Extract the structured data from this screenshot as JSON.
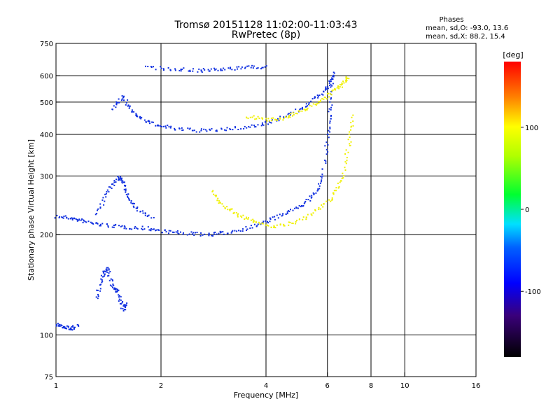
{
  "chart_data": {
    "type": "scatter",
    "title": "Tromsø 20151128 11:02:00-11:03:43",
    "subtitle": "RwPretec (8p)",
    "xlabel": "Frequency [MHz]",
    "ylabel": "Stationary phase Virtual Height [km]",
    "x_scale": "log",
    "y_scale": "log",
    "xlim": [
      1,
      16
    ],
    "ylim": [
      75,
      750
    ],
    "x_ticks": [
      1,
      2,
      4,
      6,
      8,
      10,
      16
    ],
    "y_ticks": [
      75,
      100,
      200,
      300,
      400,
      500,
      600,
      750
    ],
    "grid": true,
    "stats": {
      "header": "Phases",
      "line1": "mean, sd,O: -93.0, 13.6",
      "line2": "mean, sd,X:  88.2, 15.4"
    },
    "colorbar": {
      "label": "[deg]",
      "range": [
        -180,
        180
      ],
      "ticks": [
        100,
        0,
        -100
      ],
      "tick_labels": [
        "100",
        "0",
        "-100"
      ],
      "colormap": "rainbow"
    },
    "traces": [
      {
        "phase": -100,
        "points": [
          [
            1.0,
            228
          ],
          [
            1.1,
            225
          ],
          [
            1.2,
            220
          ],
          [
            1.35,
            215
          ],
          [
            1.55,
            212
          ],
          [
            1.8,
            210
          ],
          [
            2.0,
            206
          ],
          [
            2.3,
            203
          ],
          [
            2.7,
            201
          ],
          [
            3.0,
            203
          ],
          [
            3.5,
            210
          ],
          [
            4.0,
            220
          ],
          [
            4.5,
            232
          ],
          [
            5.0,
            245
          ],
          [
            5.5,
            265
          ],
          [
            5.8,
            300
          ],
          [
            6.0,
            400
          ],
          [
            6.1,
            480
          ],
          [
            6.15,
            600
          ]
        ]
      },
      {
        "phase": 100,
        "points": [
          [
            2.8,
            270
          ],
          [
            3.0,
            245
          ],
          [
            3.3,
            230
          ],
          [
            3.7,
            220
          ],
          [
            4.2,
            212
          ],
          [
            4.8,
            218
          ],
          [
            5.5,
            235
          ],
          [
            6.2,
            260
          ],
          [
            6.6,
            300
          ],
          [
            6.9,
            380
          ],
          [
            7.1,
            460
          ]
        ]
      },
      {
        "phase": -100,
        "points": [
          [
            1.45,
            480
          ],
          [
            1.55,
            520
          ],
          [
            1.65,
            470
          ],
          [
            1.8,
            440
          ],
          [
            2.0,
            425
          ],
          [
            2.3,
            415
          ],
          [
            2.7,
            412
          ],
          [
            3.2,
            418
          ],
          [
            3.8,
            428
          ],
          [
            4.3,
            445
          ],
          [
            5.0,
            480
          ],
          [
            5.6,
            520
          ],
          [
            6.0,
            560
          ],
          [
            6.3,
            620
          ]
        ]
      },
      {
        "phase": 100,
        "points": [
          [
            3.5,
            455
          ],
          [
            4.0,
            445
          ],
          [
            4.5,
            450
          ],
          [
            5.0,
            470
          ],
          [
            5.6,
            500
          ],
          [
            6.2,
            540
          ],
          [
            6.6,
            570
          ],
          [
            6.9,
            600
          ]
        ]
      },
      {
        "phase": -100,
        "points": [
          [
            1.8,
            640
          ],
          [
            2.2,
            630
          ],
          [
            2.6,
            625
          ],
          [
            3.0,
            628
          ],
          [
            3.5,
            640
          ],
          [
            4.0,
            640
          ]
        ]
      },
      {
        "phase": -100,
        "points": [
          [
            1.3,
            230
          ],
          [
            1.4,
            270
          ],
          [
            1.5,
            300
          ],
          [
            1.55,
            290
          ],
          [
            1.6,
            260
          ],
          [
            1.7,
            240
          ],
          [
            1.9,
            225
          ]
        ]
      },
      {
        "phase": -100,
        "points": [
          [
            1.3,
            130
          ],
          [
            1.35,
            150
          ],
          [
            1.4,
            160
          ],
          [
            1.45,
            140
          ],
          [
            1.5,
            135
          ],
          [
            1.55,
            120
          ],
          [
            1.6,
            125
          ]
        ]
      },
      {
        "phase": -100,
        "points": [
          [
            1.0,
            108
          ],
          [
            1.05,
            106
          ],
          [
            1.1,
            105
          ],
          [
            1.15,
            107
          ]
        ]
      }
    ]
  }
}
